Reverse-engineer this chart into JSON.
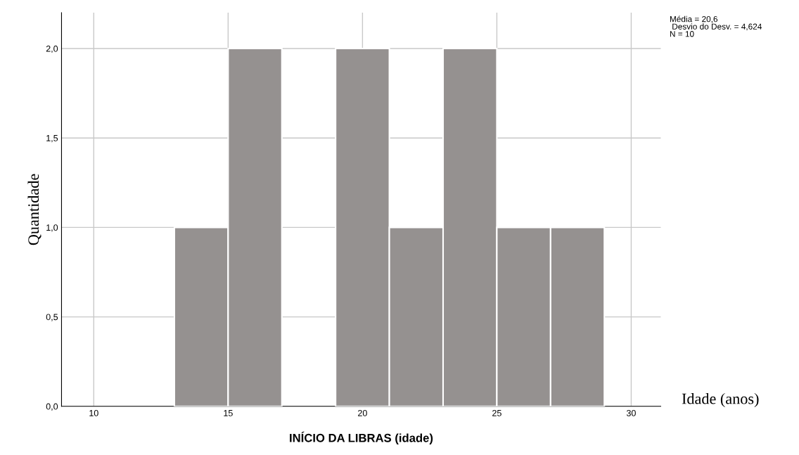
{
  "chart_data": {
    "type": "histogram",
    "xlabel": "INÍCIO DA LIBRAS (idade)",
    "ylabel": "Quantidade",
    "bins": [
      13,
      15,
      17,
      19,
      21,
      23,
      25,
      27,
      29
    ],
    "values": [
      1,
      2,
      0,
      2,
      1,
      2,
      1,
      1
    ],
    "color": "#959190",
    "xlim": [
      8.8,
      31.1
    ],
    "xticks": [
      10,
      15,
      20,
      25,
      30
    ],
    "ylim": [
      0,
      2.2
    ],
    "yticks": [
      {
        "value": 0,
        "label": "0,0"
      },
      {
        "value": 0.5,
        "label": "0,5"
      },
      {
        "value": 1,
        "label": "1,0"
      },
      {
        "value": 1.5,
        "label": "1,5"
      },
      {
        "value": 2,
        "label": "2,0"
      }
    ],
    "grid": true,
    "annotations": [
      "Média = 20,6\n Desvio do Desv. = 4,624\nN = 10",
      "Idade (anos)"
    ]
  }
}
